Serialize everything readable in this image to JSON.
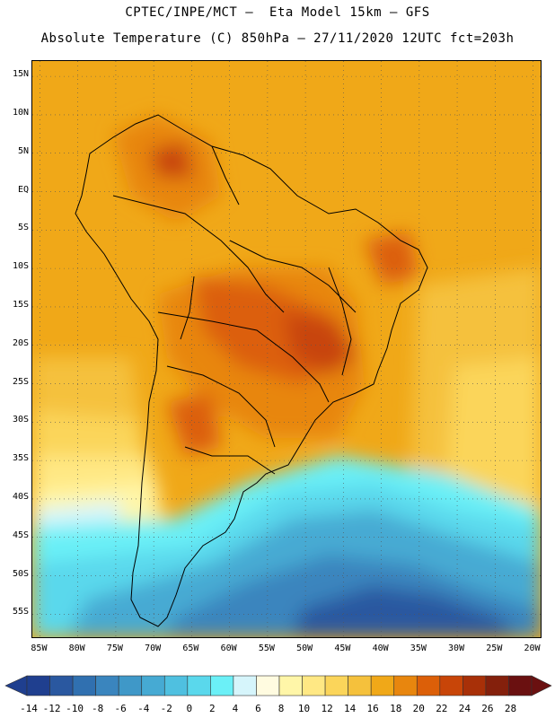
{
  "header": {
    "line1": "CPTEC/INPE/MCT –  Eta Model 15km – GFS",
    "line2": "Absolute Temperature (C) 850hPa – 27/11/2020 12UTC fct=203h"
  },
  "axes": {
    "lat_labels": [
      "15N",
      "10N",
      "5N",
      "EQ",
      "5S",
      "10S",
      "15S",
      "20S",
      "25S",
      "30S",
      "35S",
      "40S",
      "45S",
      "50S",
      "55S"
    ],
    "lon_labels": [
      "85W",
      "80W",
      "75W",
      "70W",
      "65W",
      "60W",
      "55W",
      "50W",
      "45W",
      "40W",
      "35W",
      "30W",
      "25W",
      "20W"
    ],
    "lat_range": [
      17,
      -58
    ],
    "lon_range": [
      -86,
      -19
    ]
  },
  "colorbar": {
    "labels": [
      "-14",
      "-12",
      "-10",
      "-8",
      "-6",
      "-4",
      "-2",
      "0",
      "2",
      "4",
      "6",
      "8",
      "10",
      "12",
      "14",
      "16",
      "18",
      "20",
      "22",
      "24",
      "26",
      "28"
    ],
    "colors": [
      "#1f3f8f",
      "#2a58a0",
      "#3070b0",
      "#3a85be",
      "#3f98c8",
      "#46aad3",
      "#4fc0e0",
      "#5ad8ec",
      "#6bf0f7",
      "#d6f5fb",
      "#fffbe0",
      "#fff6a8",
      "#ffe884",
      "#fbd55a",
      "#f5c13c",
      "#f0a818",
      "#e8860e",
      "#dc5f08",
      "#c84508",
      "#a83008",
      "#84200c",
      "#6a1010"
    ]
  },
  "map": {
    "description_colors": {
      "hot": "#c84508",
      "warm": "#e8860e",
      "mild": "#f0a818",
      "cool": "#ffe884",
      "cold": "#3f98c8",
      "coldest": "#2a58a0"
    }
  }
}
